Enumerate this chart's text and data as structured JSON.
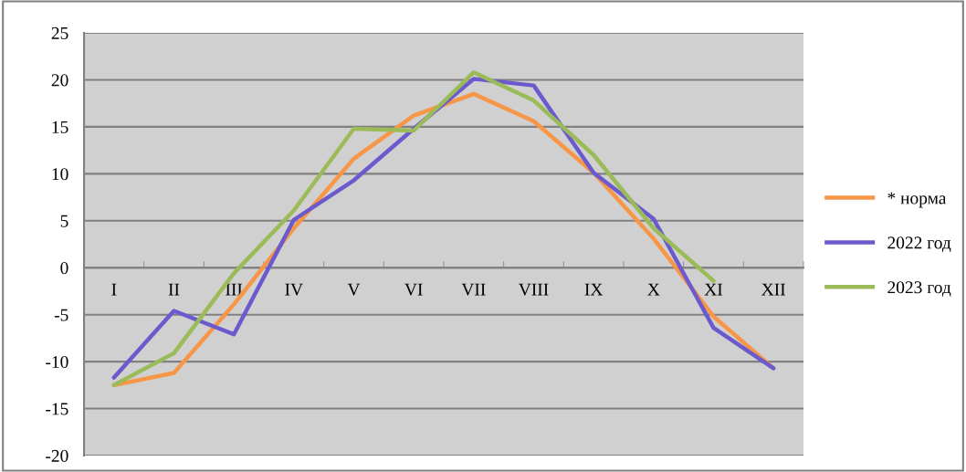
{
  "chart_data": {
    "type": "line",
    "categories": [
      "I",
      "II",
      "III",
      "IV",
      "V",
      "VI",
      "VII",
      "VIII",
      "IX",
      "X",
      "XI",
      "XII"
    ],
    "series": [
      {
        "name": "* норма",
        "color": "#f79646",
        "values": [
          -12.5,
          -11.2,
          -3.9,
          4.2,
          11.6,
          16.2,
          18.5,
          15.6,
          10.1,
          3.1,
          -5.2,
          -10.7
        ]
      },
      {
        "name": "2022 год",
        "color": "#6a5acd",
        "values": [
          -11.7,
          -4.6,
          -7.1,
          5.1,
          9.3,
          14.8,
          20.1,
          19.4,
          10.1,
          5.2,
          -6.4,
          -10.7
        ]
      },
      {
        "name": "2023 год",
        "color": "#9bbb59",
        "values": [
          -12.5,
          -9.1,
          -0.6,
          6.1,
          14.8,
          14.6,
          20.8,
          17.8,
          12,
          4.2,
          -1.4,
          null
        ]
      }
    ],
    "ylim": [
      -20,
      25
    ],
    "yticks": [
      -20,
      -15,
      -10,
      -5,
      0,
      5,
      10,
      15,
      20,
      25
    ],
    "grid": "y",
    "legend": "right",
    "marker": "none",
    "line_style": "solid"
  }
}
